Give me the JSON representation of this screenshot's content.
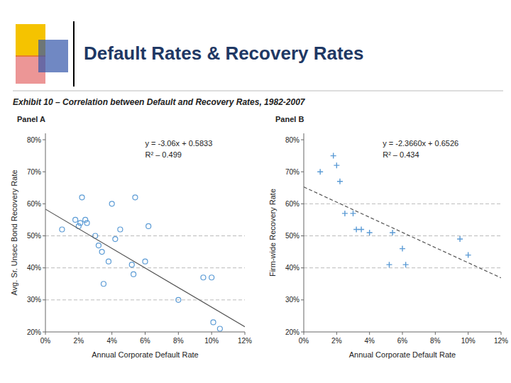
{
  "chart_data": [
    {
      "type": "scatter",
      "title": "Default Rates & Recovery Rates",
      "subtitle": "Exhibit 10 – Correlation between Default and Recovery Rates, 1982-2007",
      "panel_label": "Panel A",
      "x_label": "Annual Corporate Default Rate",
      "y_label": "Avg. Sr. Unsec Bond Recovery Rate",
      "annotations": [
        "y = -3.06x + 0.5833",
        "R² – 0.499"
      ],
      "series": [
        {
          "type": "scatter",
          "color": "#5b9bd5",
          "marker": "circle",
          "x": [
            0.01,
            0.018,
            0.02,
            0.021,
            0.022,
            0.024,
            0.025,
            0.03,
            0.032,
            0.034,
            0.035,
            0.038,
            0.04,
            0.042,
            0.045,
            0.052,
            0.053,
            0.054,
            0.06,
            0.062,
            0.08,
            0.095,
            0.1,
            0.101,
            0.105
          ],
          "values": [
            0.52,
            0.55,
            0.53,
            0.54,
            0.62,
            0.55,
            0.54,
            0.5,
            0.47,
            0.45,
            0.35,
            0.42,
            0.6,
            0.49,
            0.52,
            0.41,
            0.38,
            0.62,
            0.42,
            0.53,
            0.3,
            0.37,
            0.37,
            0.23,
            0.21
          ]
        },
        {
          "type": "line",
          "color": "#555555",
          "line_style": "solid",
          "x": [
            0.0,
            0.12
          ],
          "values": [
            0.5833,
            0.2161
          ]
        }
      ],
      "reference_lines": {
        "values": [
          0.3,
          0.4,
          0.5
        ],
        "color": "#aaaaaa",
        "line_style": "dashed"
      },
      "xlim": [
        0.0,
        0.12
      ],
      "ylim": [
        0.2,
        0.82
      ],
      "xticks": [
        {
          "value": 0.0,
          "label": "0%"
        },
        {
          "value": 0.02,
          "label": "2%"
        },
        {
          "value": 0.04,
          "label": "4%"
        },
        {
          "value": 0.06,
          "label": "6%"
        },
        {
          "value": 0.08,
          "label": "8%"
        },
        {
          "value": 0.1,
          "label": "10%"
        },
        {
          "value": 0.12,
          "label": "12%"
        }
      ],
      "yticks": [
        {
          "value": 0.2,
          "label": "20%"
        },
        {
          "value": 0.3,
          "label": "30%"
        },
        {
          "value": 0.4,
          "label": "40%"
        },
        {
          "value": 0.5,
          "label": "50%"
        },
        {
          "value": 0.6,
          "label": "60%"
        },
        {
          "value": 0.7,
          "label": "70%"
        },
        {
          "value": 0.8,
          "label": "80%"
        }
      ],
      "grid": false
    },
    {
      "type": "scatter",
      "panel_label": "Panel B",
      "x_label": "Annual Corporate Default Rate",
      "y_label": "Firm-wide Recovery Rate",
      "annotations": [
        "y = -2.3660x + 0.6526",
        "R² – 0.434"
      ],
      "series": [
        {
          "type": "scatter",
          "color": "#5b9bd5",
          "marker": "plus",
          "x": [
            0.01,
            0.018,
            0.02,
            0.022,
            0.025,
            0.03,
            0.032,
            0.035,
            0.04,
            0.052,
            0.054,
            0.06,
            0.062,
            0.095,
            0.1
          ],
          "values": [
            0.7,
            0.75,
            0.72,
            0.67,
            0.57,
            0.57,
            0.52,
            0.52,
            0.51,
            0.41,
            0.51,
            0.46,
            0.41,
            0.49,
            0.44
          ]
        },
        {
          "type": "line",
          "color": "#555555",
          "line_style": "dashed",
          "x": [
            0.0,
            0.12
          ],
          "values": [
            0.6526,
            0.36868
          ]
        }
      ],
      "reference_lines": {
        "values": [
          0.4,
          0.5,
          0.6
        ],
        "color": "#aaaaaa",
        "line_style": "dashed"
      },
      "xlim": [
        0.0,
        0.12
      ],
      "ylim": [
        0.2,
        0.82
      ],
      "xticks": [
        {
          "value": 0.0,
          "label": "0%"
        },
        {
          "value": 0.02,
          "label": "2%"
        },
        {
          "value": 0.04,
          "label": "4%"
        },
        {
          "value": 0.06,
          "label": "6%"
        },
        {
          "value": 0.08,
          "label": "8%"
        },
        {
          "value": 0.1,
          "label": "10%"
        },
        {
          "value": 0.12,
          "label": "12%"
        }
      ],
      "yticks": [
        {
          "value": 0.2,
          "label": "20%"
        },
        {
          "value": 0.3,
          "label": "30%"
        },
        {
          "value": 0.4,
          "label": "40%"
        },
        {
          "value": 0.5,
          "label": "50%"
        },
        {
          "value": 0.6,
          "label": "60%"
        },
        {
          "value": 0.7,
          "label": "70%"
        },
        {
          "value": 0.8,
          "label": "80%"
        }
      ],
      "grid": false
    }
  ]
}
